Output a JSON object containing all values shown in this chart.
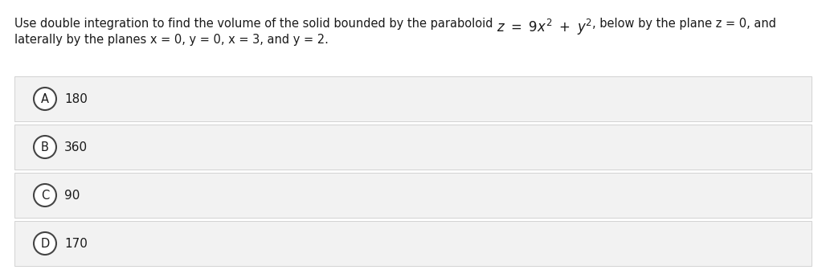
{
  "question_line1_pre": "Use double integration to find the volume of the solid bounded by the paraboloid ",
  "question_line1_eq": "$z\\ =\\ 9x^2\\ +\\ y^2$",
  "question_line1_post": ", below by the plane z = 0, and",
  "question_line2": "laterally by the planes x = 0, y = 0, x = 3, and y = 2.",
  "options": [
    {
      "label": "A",
      "value": "180"
    },
    {
      "label": "B",
      "value": "360"
    },
    {
      "label": "C",
      "value": "90"
    },
    {
      "label": "D",
      "value": "170"
    }
  ],
  "background_color": "#ffffff",
  "option_box_color": "#f2f2f2",
  "option_box_border": "#cccccc",
  "circle_facecolor": "#ffffff",
  "circle_edgecolor": "#444444",
  "text_color": "#1a1a1a",
  "font_size_question": 10.5,
  "font_size_options": 11,
  "font_size_label": 10.5,
  "fig_width": 10.28,
  "fig_height": 3.46,
  "dpi": 100
}
